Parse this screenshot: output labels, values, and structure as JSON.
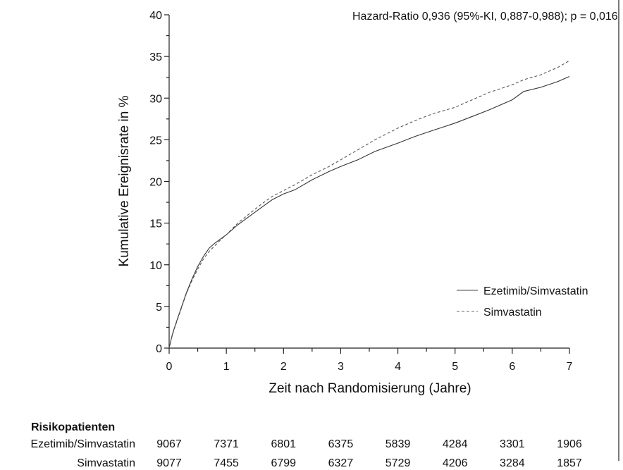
{
  "chart_data": {
    "type": "line",
    "xlabel": "Zeit nach Randomisierung (Jahre)",
    "ylabel": "Kumulative Ereignisrate in %",
    "xlim": [
      0,
      7
    ],
    "ylim": [
      0,
      40
    ],
    "x_ticks": [
      "0",
      "1",
      "2",
      "3",
      "4",
      "5",
      "6",
      "7"
    ],
    "y_ticks": [
      "0",
      "5",
      "10",
      "15",
      "20",
      "25",
      "30",
      "35",
      "40"
    ],
    "annotation": "Hazard-Ratio  0,936 (95%-KI, 0,887-0,988); p = 0,016",
    "legend_position": "bottom-right",
    "grid": false,
    "series": [
      {
        "name": "Ezetimib/Simvastatin",
        "style": "solid",
        "x": [
          0,
          0.05,
          0.1,
          0.2,
          0.3,
          0.4,
          0.5,
          0.6,
          0.7,
          0.8,
          0.9,
          1.0,
          1.2,
          1.4,
          1.6,
          1.8,
          2.0,
          2.2,
          2.5,
          2.8,
          3.0,
          3.3,
          3.6,
          4.0,
          4.3,
          4.6,
          5.0,
          5.3,
          5.6,
          6.0,
          6.2,
          6.5,
          6.8,
          7.0
        ],
        "values": [
          0,
          1.5,
          2.6,
          4.6,
          6.6,
          8.3,
          9.8,
          11.0,
          12.0,
          12.6,
          13.1,
          13.6,
          14.8,
          15.8,
          16.8,
          17.8,
          18.5,
          19.0,
          20.2,
          21.2,
          21.8,
          22.6,
          23.6,
          24.6,
          25.4,
          26.1,
          27.0,
          27.8,
          28.6,
          29.8,
          30.8,
          31.3,
          32.0,
          32.6
        ]
      },
      {
        "name": "Simvastatin",
        "style": "dashed",
        "x": [
          0,
          0.05,
          0.1,
          0.2,
          0.3,
          0.4,
          0.5,
          0.6,
          0.7,
          0.8,
          0.9,
          1.0,
          1.2,
          1.4,
          1.6,
          1.8,
          2.0,
          2.2,
          2.5,
          2.8,
          3.0,
          3.3,
          3.6,
          4.0,
          4.3,
          4.6,
          5.0,
          5.3,
          5.6,
          6.0,
          6.2,
          6.5,
          6.8,
          7.0
        ],
        "values": [
          0,
          1.4,
          2.5,
          4.5,
          6.5,
          8.1,
          9.5,
          10.7,
          11.6,
          12.3,
          13.0,
          13.6,
          15.0,
          16.1,
          17.2,
          18.2,
          18.9,
          19.6,
          20.8,
          21.8,
          22.6,
          23.8,
          25.0,
          26.4,
          27.3,
          28.1,
          28.9,
          29.8,
          30.7,
          31.6,
          32.2,
          32.8,
          33.7,
          34.5
        ]
      }
    ]
  },
  "risk_table": {
    "title": "Risikopatienten",
    "rows": [
      {
        "label": "Ezetimib/Simvastatin",
        "values": [
          "9067",
          "7371",
          "6801",
          "6375",
          "5839",
          "4284",
          "3301",
          "1906"
        ]
      },
      {
        "label": "Simvastatin",
        "values": [
          "9077",
          "7455",
          "6799",
          "6327",
          "5729",
          "4206",
          "3284",
          "1857"
        ]
      }
    ]
  }
}
